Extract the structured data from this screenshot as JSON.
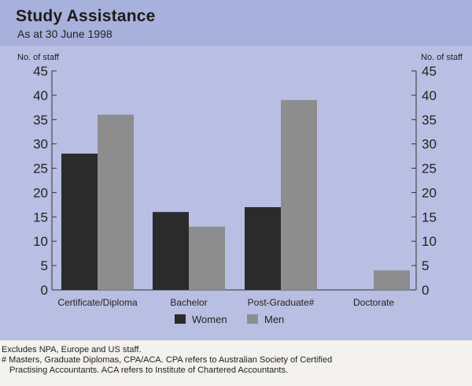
{
  "title": "Study Assistance",
  "subtitle": "As at 30 June 1998",
  "chart_data": {
    "type": "bar",
    "categories": [
      "Certificate/Diploma",
      "Bachelor",
      "Post-Graduate#",
      "Doctorate"
    ],
    "series": [
      {
        "name": "Women",
        "values": [
          28,
          16,
          17,
          0
        ],
        "color": "#2b2b2b"
      },
      {
        "name": "Men",
        "values": [
          36,
          13,
          39,
          4
        ],
        "color": "#8d8d8d"
      }
    ],
    "ylabel_left": "No. of staff",
    "ylabel_right": "No. of staff",
    "ylim": [
      0,
      45
    ],
    "yticks": [
      0,
      5,
      10,
      15,
      20,
      25,
      30,
      35,
      40,
      45
    ],
    "legend_position": "bottom-center",
    "grid": false
  },
  "notes": [
    "Excludes NPA, Europe and US staff.",
    "# Masters, Graduate Diplomas, CPA/ACA. CPA refers to Australian Society of Certified",
    "Practising Accountants. ACA refers to Institute of Chartered Accountants."
  ]
}
